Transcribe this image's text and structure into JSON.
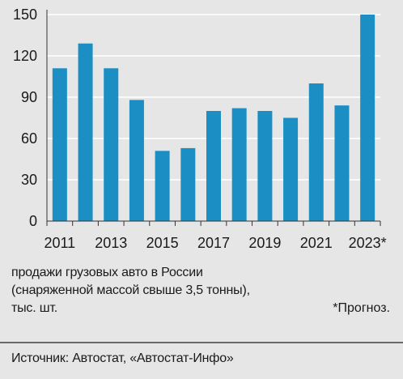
{
  "chart_data": {
    "type": "bar",
    "categories": [
      "2011",
      "2012",
      "2013",
      "2014",
      "2015",
      "2016",
      "2017",
      "2018",
      "2019",
      "2020",
      "2021",
      "2022",
      "2023*"
    ],
    "values": [
      111,
      129,
      111,
      88,
      51,
      53,
      80,
      82,
      80,
      75,
      100,
      84,
      150
    ],
    "tick_labels_x": [
      "2011",
      "2013",
      "2015",
      "2017",
      "2019",
      "2021",
      "2023*"
    ],
    "yticks": [
      0,
      30,
      60,
      90,
      120,
      150
    ],
    "ylim": [
      0,
      150
    ],
    "grid": "horizontal",
    "colors": {
      "bar": "#1b8fc4",
      "grid": "#ffffff",
      "axis": "#333333"
    }
  },
  "caption": "продажи грузовых авто в России\n(снаряженной массой свыше 3,5 тонны),\nтыс. шт.",
  "footnote": "*Прогноз.",
  "source": "Источник: Автостат, «Автостат-Инфо»"
}
